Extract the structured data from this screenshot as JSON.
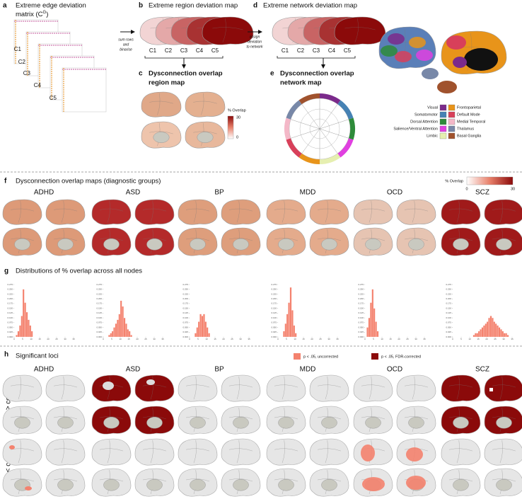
{
  "panels": {
    "a": {
      "label": "a",
      "title_line1": "Extreme edge deviation",
      "title_line2": "matrix (C",
      "superscript": "G",
      "title_end": ")",
      "matrices": [
        "C1",
        "C2",
        "C3",
        "C4",
        "C5"
      ],
      "arrow_note": [
        "sum rows",
        "and",
        "binarise"
      ]
    },
    "b": {
      "label": "b",
      "title": "Extreme region deviation map",
      "maps": [
        "C1",
        "C2",
        "C3",
        "C4",
        "C5"
      ]
    },
    "c": {
      "label": "c",
      "title": [
        "Dysconnection overlap",
        "region map"
      ],
      "colorbar_title": "% Overlap",
      "colorbar_ticks": [
        30,
        0
      ]
    },
    "d": {
      "label": "d",
      "title": "Extreme network deviation map",
      "maps": [
        "C1",
        "C2",
        "C3",
        "C4",
        "C5"
      ],
      "arrow_note": [
        "assign",
        "deviation",
        "to network"
      ]
    },
    "e": {
      "label": "e",
      "title": [
        "Dysconnection overlap",
        "network map"
      ]
    },
    "networks": [
      {
        "name": "Visual",
        "color": "#7b2a8b"
      },
      {
        "name": "Somatomotor",
        "color": "#4682b4"
      },
      {
        "name": "Dorsal Attention",
        "color": "#2e8b3a"
      },
      {
        "name": "Salience/Ventral Attention",
        "color": "#e040e0"
      },
      {
        "name": "Limbic",
        "color": "#e6efb0"
      },
      {
        "name": "Frontoparietal",
        "color": "#e8941a"
      },
      {
        "name": "Default Mode",
        "color": "#d8405a"
      },
      {
        "name": "Medial Temporal",
        "color": "#f4b8c8"
      },
      {
        "name": "Thalamus",
        "color": "#7888a8"
      },
      {
        "name": "Basal Ganglia",
        "color": "#a0522d"
      }
    ],
    "f": {
      "label": "f",
      "title": "Dysconnection overlap maps (diagnostic groups)",
      "colorbar_title": "% Overlap",
      "colorbar_min": 0,
      "colorbar_max": 30,
      "groups": [
        {
          "name": "ADHD",
          "color": "#dd9a78"
        },
        {
          "name": "ASD",
          "color": "#b42a2a"
        },
        {
          "name": "BP",
          "color": "#de9e7c"
        },
        {
          "name": "MDD",
          "color": "#e4ab8c"
        },
        {
          "name": "OCD",
          "color": "#e6c4b2"
        },
        {
          "name": "SCZ",
          "color": "#a01a1a"
        }
      ]
    },
    "g": {
      "label": "g",
      "title": "Distributions of % overlap across all nodes",
      "color": "#f4826e",
      "axes": {
        "xlim": [
          0,
          35
        ],
        "xticks": [
          0,
          5,
          10,
          15,
          20,
          25,
          30,
          35
        ],
        "ylim": [
          0,
          0.275
        ],
        "yticks": [
          {
            "value": 0,
            "label": "0.000"
          },
          {
            "value": 0.025,
            "label": "0.025"
          },
          {
            "value": 0.05,
            "label": "0.050"
          },
          {
            "value": 0.075,
            "label": "0.075"
          },
          {
            "value": 0.1,
            "label": "0.100"
          },
          {
            "value": 0.125,
            "label": "0.125"
          },
          {
            "value": 0.15,
            "label": "0.150"
          },
          {
            "value": 0.175,
            "label": "0.175"
          },
          {
            "value": 0.2,
            "label": "0.200"
          },
          {
            "value": 0.225,
            "label": "0.225"
          },
          {
            "value": 0.25,
            "label": "0.250"
          },
          {
            "value": 0.275,
            "label": "0.275"
          }
        ]
      },
      "histograms": [
        {
          "bins": [
            1,
            2,
            3,
            4,
            5,
            6,
            7,
            8,
            9,
            10,
            11
          ],
          "counts": [
            0.01,
            0.03,
            0.06,
            0.11,
            0.25,
            0.18,
            0.13,
            0.09,
            0.06,
            0.03
          ]
        },
        {
          "bins": [
            3,
            4,
            5,
            6,
            7,
            8,
            9,
            10,
            11,
            12,
            13,
            14,
            15,
            16,
            17
          ],
          "counts": [
            0.01,
            0.02,
            0.03,
            0.05,
            0.07,
            0.09,
            0.12,
            0.19,
            0.16,
            0.1,
            0.07,
            0.04,
            0.03,
            0.01
          ]
        },
        {
          "bins": [
            3,
            4,
            5,
            6,
            7,
            8,
            9,
            10,
            11,
            12
          ],
          "counts": [
            0.02,
            0.05,
            0.08,
            0.12,
            0.11,
            0.12,
            0.08,
            0.05,
            0.02
          ]
        },
        {
          "bins": [
            3,
            4,
            5,
            6,
            7,
            8,
            9,
            10,
            11
          ],
          "counts": [
            0.03,
            0.07,
            0.12,
            0.18,
            0.26,
            0.14,
            0.06,
            0.02
          ]
        },
        {
          "bins": [
            1,
            2,
            3,
            4,
            5,
            6,
            7,
            8
          ],
          "counts": [
            0.05,
            0.1,
            0.18,
            0.25,
            0.15,
            0.08,
            0.03
          ]
        },
        {
          "bins": [
            12,
            13,
            14,
            15,
            16,
            17,
            18,
            19,
            20,
            21,
            22,
            23,
            24,
            25,
            26,
            27,
            28,
            29,
            30,
            31,
            32,
            33
          ],
          "counts": [
            0.01,
            0.02,
            0.02,
            0.03,
            0.04,
            0.05,
            0.06,
            0.07,
            0.08,
            0.1,
            0.11,
            0.1,
            0.08,
            0.07,
            0.06,
            0.05,
            0.04,
            0.03,
            0.02,
            0.02,
            0.01
          ]
        }
      ]
    },
    "h": {
      "label": "h",
      "title": "Significant loci",
      "legend": [
        {
          "name": "p < .05, uncorrected",
          "color": "#f4826e"
        },
        {
          "name": "p < .05, FDR-corrected",
          "color": "#8b0a0a"
        }
      ],
      "rows": [
        "case > control",
        "case < control"
      ],
      "groups": [
        "ADHD",
        "ASD",
        "BP",
        "MDD",
        "OCD",
        "SCZ"
      ]
    }
  }
}
